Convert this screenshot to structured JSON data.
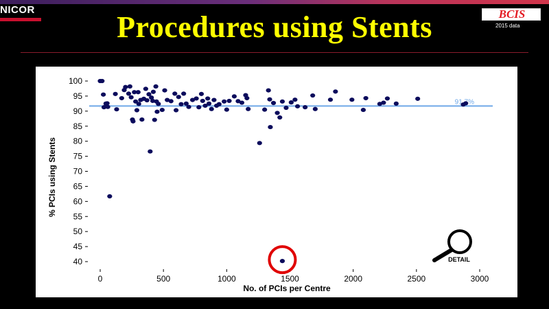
{
  "header": {
    "brand": "NICOR",
    "title": "Procedures using Stents",
    "badge_logo": "BCIS",
    "badge_year": "2015 data"
  },
  "detail_button": {
    "label": "DETAIL",
    "icon": "magnifier-icon"
  },
  "colors": {
    "background": "#000000",
    "title": "#ffff00",
    "points": "#0b0b5c",
    "reference_line": "#6fa8e8",
    "highlight": "#e00000"
  },
  "chart_data": {
    "type": "scatter",
    "xlabel": "No. of PCIs per Centre",
    "ylabel": "% PCIs using Stents",
    "xlim": [
      -50,
      3100
    ],
    "ylim": [
      38,
      102
    ],
    "xticks": [
      0,
      500,
      1000,
      1500,
      2000,
      2500,
      3000
    ],
    "yticks": [
      40,
      45,
      50,
      55,
      60,
      65,
      70,
      75,
      80,
      85,
      90,
      95,
      100
    ],
    "grid": false,
    "reference_line": {
      "value": 91.7,
      "label": "91.7%"
    },
    "highlighted_point": {
      "x": 1440,
      "y": 40.2
    },
    "points": [
      {
        "x": 0,
        "y": 100
      },
      {
        "x": 15,
        "y": 100
      },
      {
        "x": 25,
        "y": 95.5
      },
      {
        "x": 30,
        "y": 91.3
      },
      {
        "x": 45,
        "y": 92.5
      },
      {
        "x": 55,
        "y": 92.6
      },
      {
        "x": 60,
        "y": 91.4
      },
      {
        "x": 75,
        "y": 61.7
      },
      {
        "x": 120,
        "y": 95.7
      },
      {
        "x": 130,
        "y": 90.6
      },
      {
        "x": 170,
        "y": 94.3
      },
      {
        "x": 190,
        "y": 97
      },
      {
        "x": 200,
        "y": 98
      },
      {
        "x": 225,
        "y": 95.8
      },
      {
        "x": 235,
        "y": 98.2
      },
      {
        "x": 245,
        "y": 94.6
      },
      {
        "x": 255,
        "y": 87.2
      },
      {
        "x": 260,
        "y": 86.6
      },
      {
        "x": 270,
        "y": 96.3
      },
      {
        "x": 280,
        "y": 93.2
      },
      {
        "x": 290,
        "y": 90.3
      },
      {
        "x": 300,
        "y": 96.3
      },
      {
        "x": 305,
        "y": 92.4
      },
      {
        "x": 320,
        "y": 93.7
      },
      {
        "x": 330,
        "y": 87.2
      },
      {
        "x": 345,
        "y": 94.1
      },
      {
        "x": 360,
        "y": 97.4
      },
      {
        "x": 370,
        "y": 93.6
      },
      {
        "x": 385,
        "y": 95.6
      },
      {
        "x": 395,
        "y": 76.6
      },
      {
        "x": 405,
        "y": 94.5
      },
      {
        "x": 415,
        "y": 93.4
      },
      {
        "x": 420,
        "y": 96.4
      },
      {
        "x": 430,
        "y": 87.1
      },
      {
        "x": 440,
        "y": 98.2
      },
      {
        "x": 445,
        "y": 93.2
      },
      {
        "x": 450,
        "y": 89.8
      },
      {
        "x": 460,
        "y": 92.4
      },
      {
        "x": 490,
        "y": 90.4
      },
      {
        "x": 510,
        "y": 96.9
      },
      {
        "x": 530,
        "y": 93.7
      },
      {
        "x": 560,
        "y": 93.3
      },
      {
        "x": 590,
        "y": 95.8
      },
      {
        "x": 600,
        "y": 90.3
      },
      {
        "x": 620,
        "y": 94.7
      },
      {
        "x": 640,
        "y": 92.3
      },
      {
        "x": 660,
        "y": 95.8
      },
      {
        "x": 680,
        "y": 92.5
      },
      {
        "x": 700,
        "y": 91.4
      },
      {
        "x": 730,
        "y": 93.7
      },
      {
        "x": 760,
        "y": 94.2
      },
      {
        "x": 780,
        "y": 91.3
      },
      {
        "x": 800,
        "y": 95.7
      },
      {
        "x": 810,
        "y": 93.4
      },
      {
        "x": 830,
        "y": 91.8
      },
      {
        "x": 850,
        "y": 94.2
      },
      {
        "x": 860,
        "y": 92.5
      },
      {
        "x": 880,
        "y": 90.7
      },
      {
        "x": 900,
        "y": 93.7
      },
      {
        "x": 920,
        "y": 91.8
      },
      {
        "x": 940,
        "y": 92.3
      },
      {
        "x": 980,
        "y": 93.2
      },
      {
        "x": 1000,
        "y": 90.5
      },
      {
        "x": 1020,
        "y": 93.4
      },
      {
        "x": 1060,
        "y": 94.9
      },
      {
        "x": 1090,
        "y": 93.3
      },
      {
        "x": 1120,
        "y": 92.8
      },
      {
        "x": 1150,
        "y": 95.3
      },
      {
        "x": 1160,
        "y": 94.3
      },
      {
        "x": 1170,
        "y": 90.7
      },
      {
        "x": 1260,
        "y": 79.4
      },
      {
        "x": 1300,
        "y": 90.5
      },
      {
        "x": 1330,
        "y": 96.9
      },
      {
        "x": 1340,
        "y": 93.9
      },
      {
        "x": 1345,
        "y": 84.7
      },
      {
        "x": 1370,
        "y": 92.7
      },
      {
        "x": 1400,
        "y": 89.4
      },
      {
        "x": 1420,
        "y": 87.9
      },
      {
        "x": 1440,
        "y": 93.2
      },
      {
        "x": 1470,
        "y": 91.1
      },
      {
        "x": 1510,
        "y": 92.9
      },
      {
        "x": 1540,
        "y": 93.8
      },
      {
        "x": 1560,
        "y": 91.6
      },
      {
        "x": 1620,
        "y": 91.3
      },
      {
        "x": 1680,
        "y": 95.2
      },
      {
        "x": 1700,
        "y": 90.7
      },
      {
        "x": 1820,
        "y": 93.8
      },
      {
        "x": 1860,
        "y": 96.5
      },
      {
        "x": 1990,
        "y": 93.8
      },
      {
        "x": 2080,
        "y": 90.4
      },
      {
        "x": 2100,
        "y": 94.3
      },
      {
        "x": 2210,
        "y": 92.4
      },
      {
        "x": 2240,
        "y": 92.8
      },
      {
        "x": 2270,
        "y": 94.2
      },
      {
        "x": 2340,
        "y": 92.5
      },
      {
        "x": 2510,
        "y": 94.1
      },
      {
        "x": 2870,
        "y": 92.2
      },
      {
        "x": 2890,
        "y": 92.6
      },
      {
        "x": 1440,
        "y": 40.2
      }
    ]
  }
}
